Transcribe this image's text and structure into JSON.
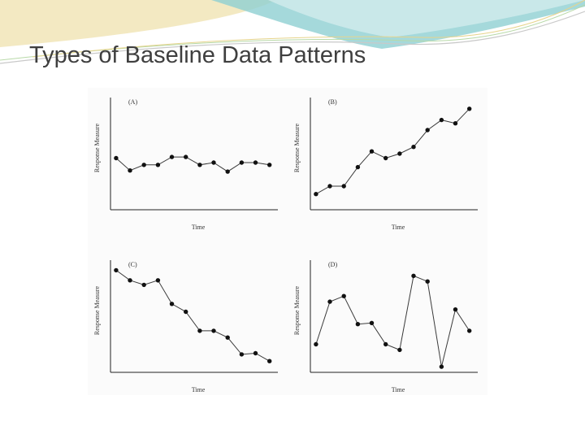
{
  "slide": {
    "title": "Types of Baseline Data Patterns"
  },
  "colors": {
    "title_text": "#3f3f3f",
    "line": "#3a3a3a",
    "marker": "#111111",
    "axis": "#222222",
    "banner_teal": "#7fc6c9",
    "banner_gold": "#e9d79a"
  },
  "chart_data": [
    {
      "type": "line",
      "panel_label": "(A)",
      "xlabel": "Time",
      "ylabel": "Response Measure",
      "grid": false,
      "legend": "none",
      "x": [
        1,
        2,
        3,
        4,
        5,
        6,
        7,
        8,
        9,
        10,
        11,
        12
      ],
      "values": [
        4.6,
        3.5,
        4.0,
        4.0,
        4.7,
        4.7,
        4.0,
        4.2,
        3.4,
        4.2,
        4.2,
        4.0
      ],
      "ylim": [
        0,
        10
      ],
      "xlim": [
        0.6,
        12.6
      ]
    },
    {
      "type": "line",
      "panel_label": "(B)",
      "xlabel": "Time",
      "ylabel": "Response Measure",
      "grid": false,
      "legend": "none",
      "x": [
        1,
        2,
        3,
        4,
        5,
        6,
        7,
        8,
        9,
        10,
        11,
        12
      ],
      "values": [
        1.4,
        2.1,
        2.1,
        3.8,
        5.2,
        4.6,
        5.0,
        5.6,
        7.1,
        8.0,
        7.7,
        9.0
      ],
      "ylim": [
        0,
        10
      ],
      "xlim": [
        0.6,
        12.6
      ]
    },
    {
      "type": "line",
      "panel_label": "(C)",
      "xlabel": "Time",
      "ylabel": "Response Measure",
      "grid": false,
      "legend": "none",
      "x": [
        1,
        2,
        3,
        4,
        5,
        6,
        7,
        8,
        9,
        10,
        11,
        12
      ],
      "values": [
        9.1,
        8.2,
        7.8,
        8.2,
        6.1,
        5.4,
        3.7,
        3.7,
        3.1,
        1.6,
        1.7,
        1.0
      ],
      "ylim": [
        0,
        10
      ],
      "xlim": [
        0.6,
        12.6
      ]
    },
    {
      "type": "line",
      "panel_label": "(D)",
      "xlabel": "Time",
      "ylabel": "Response Measure",
      "grid": false,
      "legend": "none",
      "x": [
        1,
        2,
        3,
        4,
        5,
        6,
        7,
        8,
        9,
        10,
        11,
        12
      ],
      "values": [
        2.5,
        6.3,
        6.8,
        4.3,
        4.4,
        2.5,
        2.0,
        8.6,
        8.1,
        0.5,
        5.6,
        3.7
      ],
      "ylim": [
        0,
        10
      ],
      "xlim": [
        0.6,
        12.6
      ]
    }
  ]
}
